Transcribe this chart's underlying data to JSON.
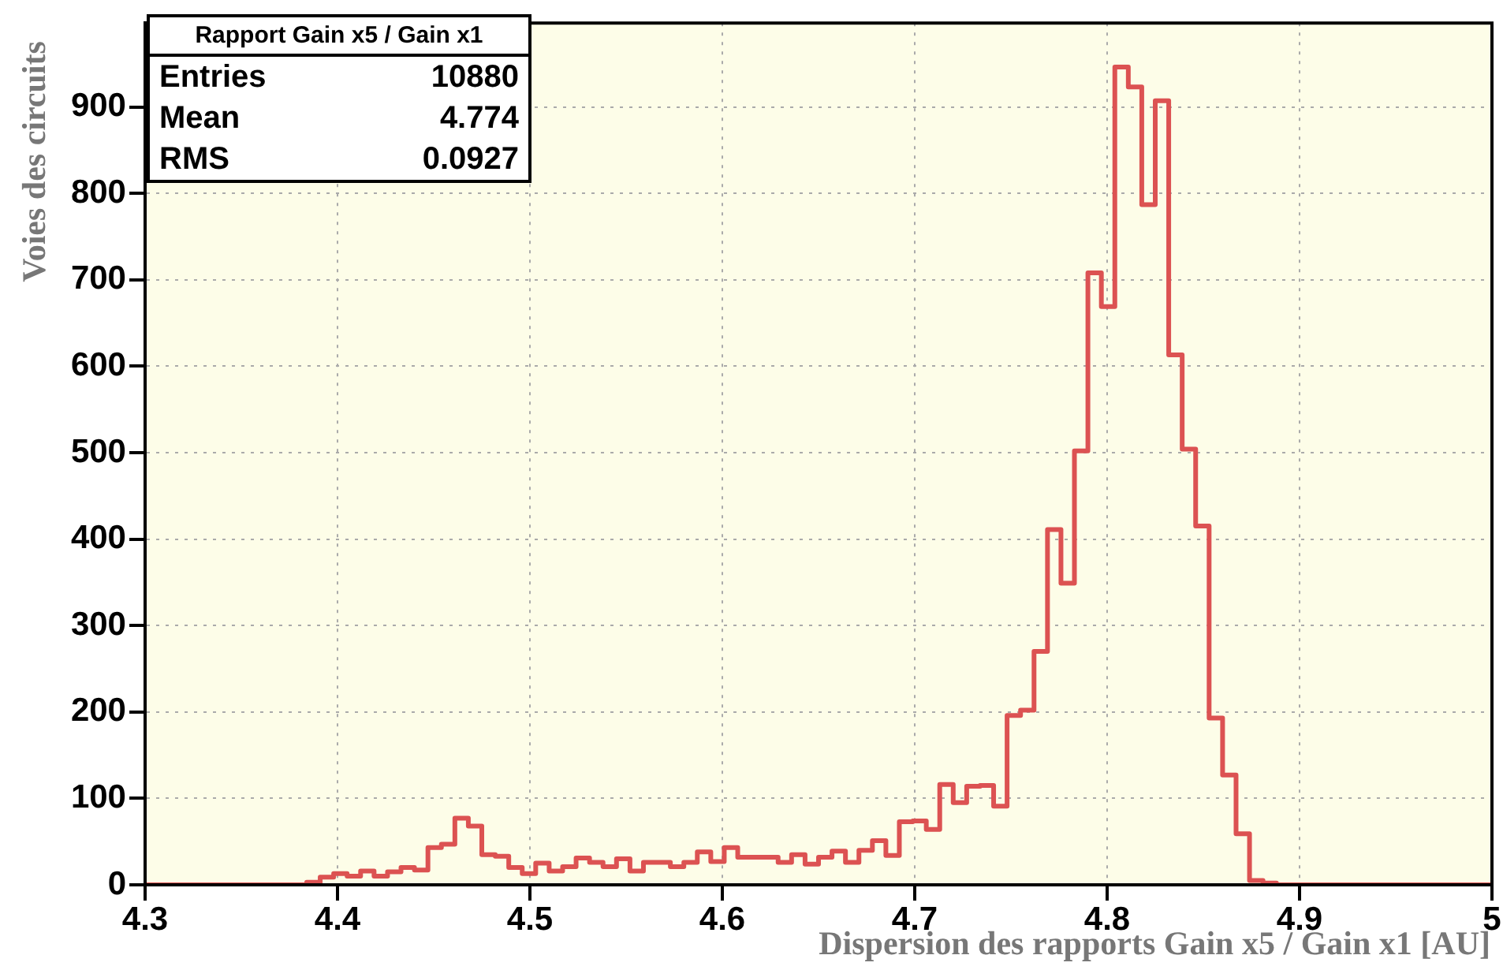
{
  "chart_data": {
    "type": "histogram",
    "xlabel": "Dispersion des rapports Gain x5 / Gain x1 [AU]",
    "ylabel": "Voies des circuits",
    "annotations": [
      "Rapport Gain x5 / Gain x1",
      "Entries",
      "10880",
      "Mean",
      "4.774",
      "RMS",
      "0.0927"
    ],
    "bins": [
      4.3,
      4.307,
      4.314,
      4.321,
      4.328,
      4.335,
      4.342,
      4.349,
      4.356,
      4.363,
      4.37,
      4.377,
      4.384,
      4.391,
      4.398,
      4.405,
      4.412,
      4.419,
      4.426,
      4.433,
      4.44,
      4.447,
      4.454,
      4.461,
      4.468,
      4.475,
      4.482,
      4.489,
      4.496,
      4.503,
      4.51,
      4.517,
      4.524,
      4.531,
      4.538,
      4.545,
      4.552,
      4.559,
      4.566,
      4.573,
      4.58,
      4.587,
      4.594,
      4.601,
      4.608,
      4.615,
      4.622,
      4.629,
      4.636,
      4.643,
      4.65,
      4.657,
      4.664,
      4.671,
      4.678,
      4.685,
      4.692,
      4.699,
      4.706,
      4.713,
      4.72,
      4.727,
      4.734,
      4.741,
      4.748,
      4.755,
      4.762,
      4.769,
      4.776,
      4.783,
      4.79,
      4.797,
      4.804,
      4.811,
      4.818,
      4.825,
      4.832,
      4.839,
      4.846,
      4.853,
      4.86,
      4.867,
      4.874,
      4.881,
      4.888,
      4.895,
      4.902,
      4.909,
      4.916,
      4.923,
      4.93,
      4.937,
      4.944,
      4.951,
      4.958,
      4.965,
      4.972,
      4.979,
      4.986,
      4.993,
      5
    ],
    "values": [
      0,
      0,
      0,
      0,
      0,
      0,
      0,
      0,
      0,
      0,
      0,
      0,
      3,
      9,
      13,
      10,
      16,
      10,
      15,
      20,
      17,
      43,
      47,
      77,
      68,
      35,
      33,
      20,
      13,
      25,
      16,
      21,
      31,
      26,
      21,
      30,
      16,
      26,
      26,
      21,
      26,
      38,
      27,
      43,
      32,
      32,
      32,
      26,
      35,
      24,
      32,
      39,
      26,
      40,
      51,
      34,
      73,
      74,
      64,
      116,
      95,
      114,
      115,
      91,
      196,
      202,
      270,
      411,
      349,
      502,
      708,
      669,
      946,
      923,
      787,
      907,
      613,
      504,
      415,
      193,
      127,
      59,
      5,
      2,
      0,
      0,
      0,
      0,
      0,
      0,
      0,
      0,
      0,
      0,
      0,
      0,
      0,
      0,
      0,
      0
    ],
    "color": "#dc5252",
    "xlim": [
      4.3,
      5
    ],
    "xticks": [
      4.3,
      4.4,
      4.5,
      4.6,
      4.7,
      4.8,
      4.9,
      5
    ],
    "ylim": [
      0,
      997
    ],
    "yticks": [
      0,
      100,
      200,
      300,
      400,
      500,
      600,
      700,
      800,
      900
    ],
    "grid": true
  }
}
